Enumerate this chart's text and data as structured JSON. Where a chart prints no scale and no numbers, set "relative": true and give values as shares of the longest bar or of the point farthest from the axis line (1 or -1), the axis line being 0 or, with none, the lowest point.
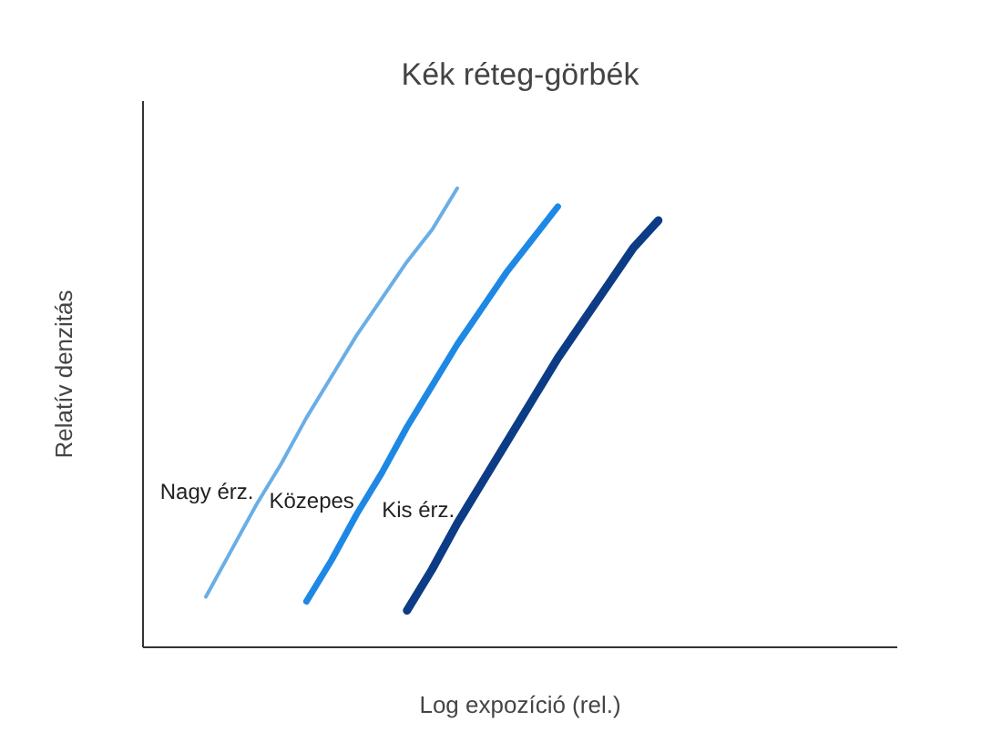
{
  "chart_data": {
    "type": "line",
    "title": "Kék réteg-görbék",
    "xlabel": "Log expozíció (rel.)",
    "ylabel": "Relatív denzitás",
    "relative": true,
    "grid": false,
    "categories": [
      null,
      null,
      null,
      null,
      null,
      null,
      null,
      null,
      null,
      null,
      null,
      null,
      null,
      null,
      null,
      null,
      null,
      null,
      null,
      null,
      null,
      null,
      null,
      null,
      null,
      null,
      null,
      null,
      null,
      null
    ],
    "series": [
      {
        "name": "Nagy érz.",
        "color": "#6aaee6",
        "values": [
          null,
          null,
          0.11,
          0.21,
          0.31,
          0.4,
          0.5,
          0.59,
          0.68,
          0.76,
          0.84,
          0.91,
          1,
          null,
          null,
          null,
          null,
          null,
          null,
          null,
          null,
          null,
          null,
          null,
          null,
          null,
          null,
          null,
          null,
          null
        ]
      },
      {
        "name": "Közepes",
        "color": "#1e88e5",
        "values": [
          null,
          null,
          null,
          null,
          null,
          null,
          0.1,
          0.19,
          0.29,
          0.38,
          0.48,
          0.57,
          0.66,
          0.74,
          0.82,
          0.89,
          0.96,
          null,
          null,
          null,
          null,
          null,
          null,
          null,
          null,
          null,
          null,
          null,
          null,
          null
        ]
      },
      {
        "name": "Kis érz.",
        "color": "#0d3c87",
        "values": [
          null,
          null,
          null,
          null,
          null,
          null,
          null,
          null,
          null,
          null,
          0.08,
          0.17,
          0.27,
          0.36,
          0.45,
          0.54,
          0.63,
          0.71,
          0.79,
          0.87,
          0.93,
          null,
          null,
          null,
          null,
          null,
          null,
          null,
          null,
          null
        ]
      }
    ]
  }
}
